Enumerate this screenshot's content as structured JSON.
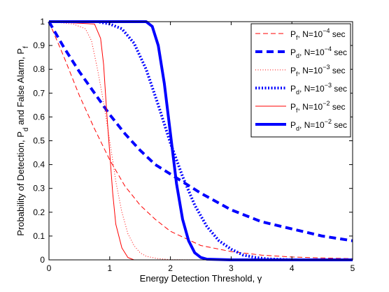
{
  "chart_data": {
    "type": "line",
    "xlabel": "Energy Detection Threshold, γ",
    "ylabel": "Probability of Detection, P_d and False Alarm, P_f",
    "xlim": [
      0,
      5
    ],
    "ylim": [
      0,
      1
    ],
    "x_ticks": [
      0,
      1,
      2,
      3,
      4,
      5
    ],
    "x_tick_labels": [
      "0",
      "1",
      "2",
      "3",
      "4",
      "5"
    ],
    "y_ticks": [
      0,
      0.1,
      0.2,
      0.3,
      0.4,
      0.5,
      0.6,
      0.7,
      0.8,
      0.9,
      1
    ],
    "y_tick_labels": [
      "0",
      "0.1",
      "0.2",
      "0.3",
      "0.4",
      "0.5",
      "0.6",
      "0.7",
      "0.8",
      "0.9",
      "1"
    ],
    "grid": false,
    "legend_position": "top-right",
    "series": [
      {
        "name": "Pf, N=10^-4 sec",
        "legend": {
          "sym": "P",
          "sub": "f",
          "mid": ", N=10",
          "sup": "−4",
          "tail": " sec"
        },
        "color": "#ff0000",
        "style": "dashed",
        "weight": "thin",
        "x": [
          0,
          0.25,
          0.5,
          0.75,
          1.0,
          1.25,
          1.5,
          1.75,
          2.0,
          2.5,
          3.0,
          3.5,
          4.0,
          4.5,
          5.0
        ],
        "y": [
          1.0,
          0.85,
          0.69,
          0.55,
          0.42,
          0.31,
          0.23,
          0.17,
          0.12,
          0.06,
          0.035,
          0.02,
          0.012,
          0.008,
          0.005
        ]
      },
      {
        "name": "Pd, N=10^-4 sec",
        "legend": {
          "sym": "P",
          "sub": "d",
          "mid": ", N=10",
          "sup": "−4",
          "tail": " sec"
        },
        "color": "#0000ff",
        "style": "dashed",
        "weight": "thick",
        "x": [
          0,
          0.25,
          0.5,
          0.75,
          1.0,
          1.25,
          1.5,
          1.75,
          2.0,
          2.5,
          3.0,
          3.5,
          4.0,
          4.5,
          5.0
        ],
        "y": [
          1.0,
          0.89,
          0.79,
          0.7,
          0.61,
          0.53,
          0.46,
          0.4,
          0.36,
          0.28,
          0.21,
          0.16,
          0.13,
          0.1,
          0.08
        ]
      },
      {
        "name": "Pf, N=10^-3 sec",
        "legend": {
          "sym": "P",
          "sub": "f",
          "mid": ", N=10",
          "sup": "−3",
          "tail": " sec"
        },
        "color": "#ff0000",
        "style": "dotted",
        "weight": "thin",
        "x": [
          0,
          0.4,
          0.6,
          0.7,
          0.8,
          0.9,
          1.0,
          1.1,
          1.2,
          1.3,
          1.4,
          1.5,
          1.6,
          1.8,
          2.0,
          2.5,
          5.0
        ],
        "y": [
          1.0,
          0.99,
          0.97,
          0.92,
          0.8,
          0.66,
          0.5,
          0.33,
          0.2,
          0.11,
          0.06,
          0.03,
          0.015,
          0.005,
          0.001,
          0.0,
          0.0
        ]
      },
      {
        "name": "Pd, N=10^-3 sec",
        "legend": {
          "sym": "P",
          "sub": "d",
          "mid": ", N=10",
          "sup": "−3",
          "tail": " sec"
        },
        "color": "#0000ff",
        "style": "dotted",
        "weight": "thick",
        "x": [
          0,
          0.8,
          1.0,
          1.2,
          1.4,
          1.6,
          1.8,
          2.0,
          2.2,
          2.4,
          2.6,
          2.8,
          3.0,
          3.2,
          3.4,
          3.6,
          3.8,
          4.0,
          5.0
        ],
        "y": [
          1.0,
          1.0,
          0.99,
          0.97,
          0.91,
          0.8,
          0.65,
          0.49,
          0.35,
          0.23,
          0.14,
          0.08,
          0.045,
          0.02,
          0.01,
          0.004,
          0.002,
          0.0,
          0.0
        ]
      },
      {
        "name": "Pf, N=10^-2 sec",
        "legend": {
          "sym": "P",
          "sub": "f",
          "mid": ", N=10",
          "sup": "−2",
          "tail": " sec"
        },
        "color": "#ff0000",
        "style": "solid",
        "weight": "thin",
        "x": [
          0,
          0.75,
          0.85,
          0.9,
          0.95,
          1.0,
          1.05,
          1.1,
          1.2,
          1.3,
          1.4,
          5.0
        ],
        "y": [
          1.0,
          0.99,
          0.93,
          0.82,
          0.62,
          0.45,
          0.28,
          0.15,
          0.05,
          0.01,
          0.0,
          0.0
        ]
      },
      {
        "name": "Pd, N=10^-2 sec",
        "legend": {
          "sym": "P",
          "sub": "d",
          "mid": ", N=10",
          "sup": "−2",
          "tail": " sec"
        },
        "color": "#0000ff",
        "style": "solid",
        "weight": "thick",
        "x": [
          0,
          1.6,
          1.7,
          1.8,
          1.9,
          2.0,
          2.1,
          2.2,
          2.3,
          2.4,
          2.5,
          2.6,
          3.0,
          5.0
        ],
        "y": [
          1.0,
          1.0,
          0.98,
          0.9,
          0.74,
          0.53,
          0.32,
          0.17,
          0.08,
          0.03,
          0.01,
          0.003,
          0.0,
          0.0
        ]
      }
    ]
  }
}
